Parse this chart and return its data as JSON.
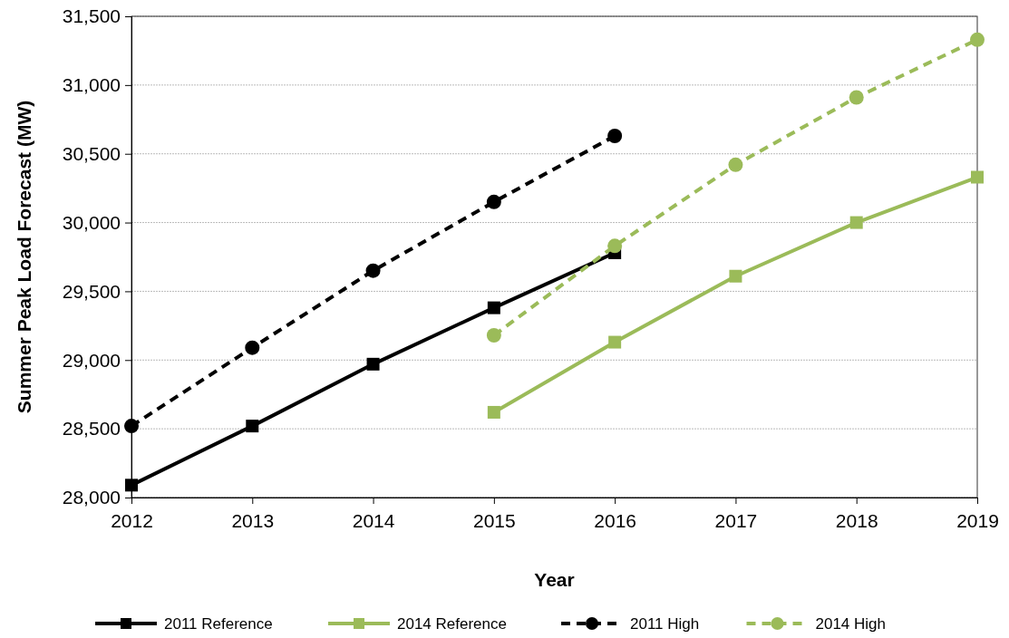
{
  "chart_data": {
    "type": "line",
    "xlabel": "Year",
    "ylabel": "Summer Peak Load Forecast (MW)",
    "x": [
      2012,
      2013,
      2014,
      2015,
      2016,
      2017,
      2018,
      2019
    ],
    "xlim": [
      2012,
      2019
    ],
    "xticks": [
      2012,
      2013,
      2014,
      2015,
      2016,
      2017,
      2018,
      2019
    ],
    "ylim": [
      28000,
      31500
    ],
    "yticks": [
      {
        "value": 28000,
        "label": "28,000"
      },
      {
        "value": 28500,
        "label": "28,500"
      },
      {
        "value": 29000,
        "label": "29,000"
      },
      {
        "value": 29500,
        "label": "29,500"
      },
      {
        "value": 30000,
        "label": "30,000"
      },
      {
        "value": 30500,
        "label": "30,500"
      },
      {
        "value": 31000,
        "label": "31,000"
      },
      {
        "value": 31500,
        "label": "31,500"
      }
    ],
    "grid": "y",
    "legend": "bottom",
    "series": [
      {
        "name": "2011 Reference",
        "color": "#000000",
        "marker": "square",
        "line_style": "solid",
        "values": [
          28090,
          28520,
          28970,
          29380,
          29780,
          null,
          null,
          null
        ]
      },
      {
        "name": "2014 Reference",
        "color": "#9bbb59",
        "marker": "square",
        "line_style": "solid",
        "values": [
          null,
          null,
          null,
          28620,
          29130,
          29610,
          30000,
          30330
        ]
      },
      {
        "name": "2011 High",
        "color": "#000000",
        "marker": "circle",
        "line_style": "dashed",
        "values": [
          28520,
          29090,
          29650,
          30150,
          30630,
          null,
          null,
          null
        ]
      },
      {
        "name": "2014 High",
        "color": "#9bbb59",
        "marker": "circle",
        "line_style": "dashed",
        "values": [
          null,
          null,
          null,
          29180,
          29830,
          30420,
          30910,
          31330
        ]
      }
    ]
  }
}
